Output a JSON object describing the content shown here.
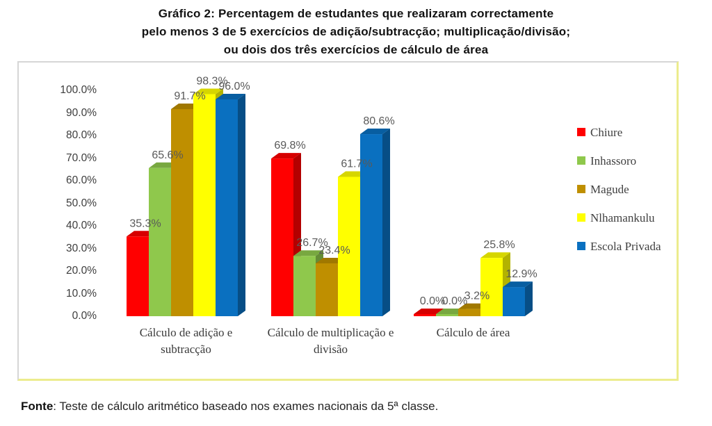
{
  "title": {
    "lines": [
      "Gráfico 2: Percentagem de estudantes que realizaram correctamente",
      "pelo menos 3 de 5 exercícios de adição/subtracção; multiplicação/divisão;",
      "ou dois dos três exercícios de cálculo de área"
    ]
  },
  "source_note": {
    "label": "Fonte",
    "text": ": Teste de cálculo aritmético baseado nos exames nacionais da 5ª classe."
  },
  "chart_data": {
    "type": "bar",
    "style": "3d-clustered",
    "title": "Gráfico 2: Percentagem de estudantes que realizaram correctamente pelo menos 3 de 5 exercícios de adição/subtracção; multiplicação/divisão; ou dois dos três exercícios de cálculo de área",
    "categories": [
      "Cálculo de adição e subtracção",
      "Cálculo de multiplicação e divisão",
      "Cálculo de área"
    ],
    "series": [
      {
        "name": "Chiure",
        "color": "#FF0000",
        "values": [
          35.3,
          69.8,
          0.0
        ]
      },
      {
        "name": "Inhassoro",
        "color": "#8FC84C",
        "values": [
          65.6,
          26.7,
          0.0
        ]
      },
      {
        "name": "Magude",
        "color": "#BF8F00",
        "values": [
          91.7,
          23.4,
          3.2
        ]
      },
      {
        "name": "Nlhamankulu",
        "color": "#FFFF00",
        "values": [
          98.3,
          61.7,
          25.8
        ]
      },
      {
        "name": "Escola Privada",
        "color": "#0A70C0",
        "values": [
          96.0,
          80.6,
          12.9
        ]
      }
    ],
    "yticks": [
      "100.0%",
      "90.0%",
      "80.0%",
      "70.0%",
      "60.0%",
      "50.0%",
      "40.0%",
      "30.0%",
      "20.0%",
      "10.0%",
      "0.0%"
    ],
    "ylim": [
      0,
      100
    ],
    "y_tick_format": "one-decimal-percent",
    "value_labels": "above-bars-one-decimal-percent",
    "grid": "off",
    "legend_position": "right"
  }
}
